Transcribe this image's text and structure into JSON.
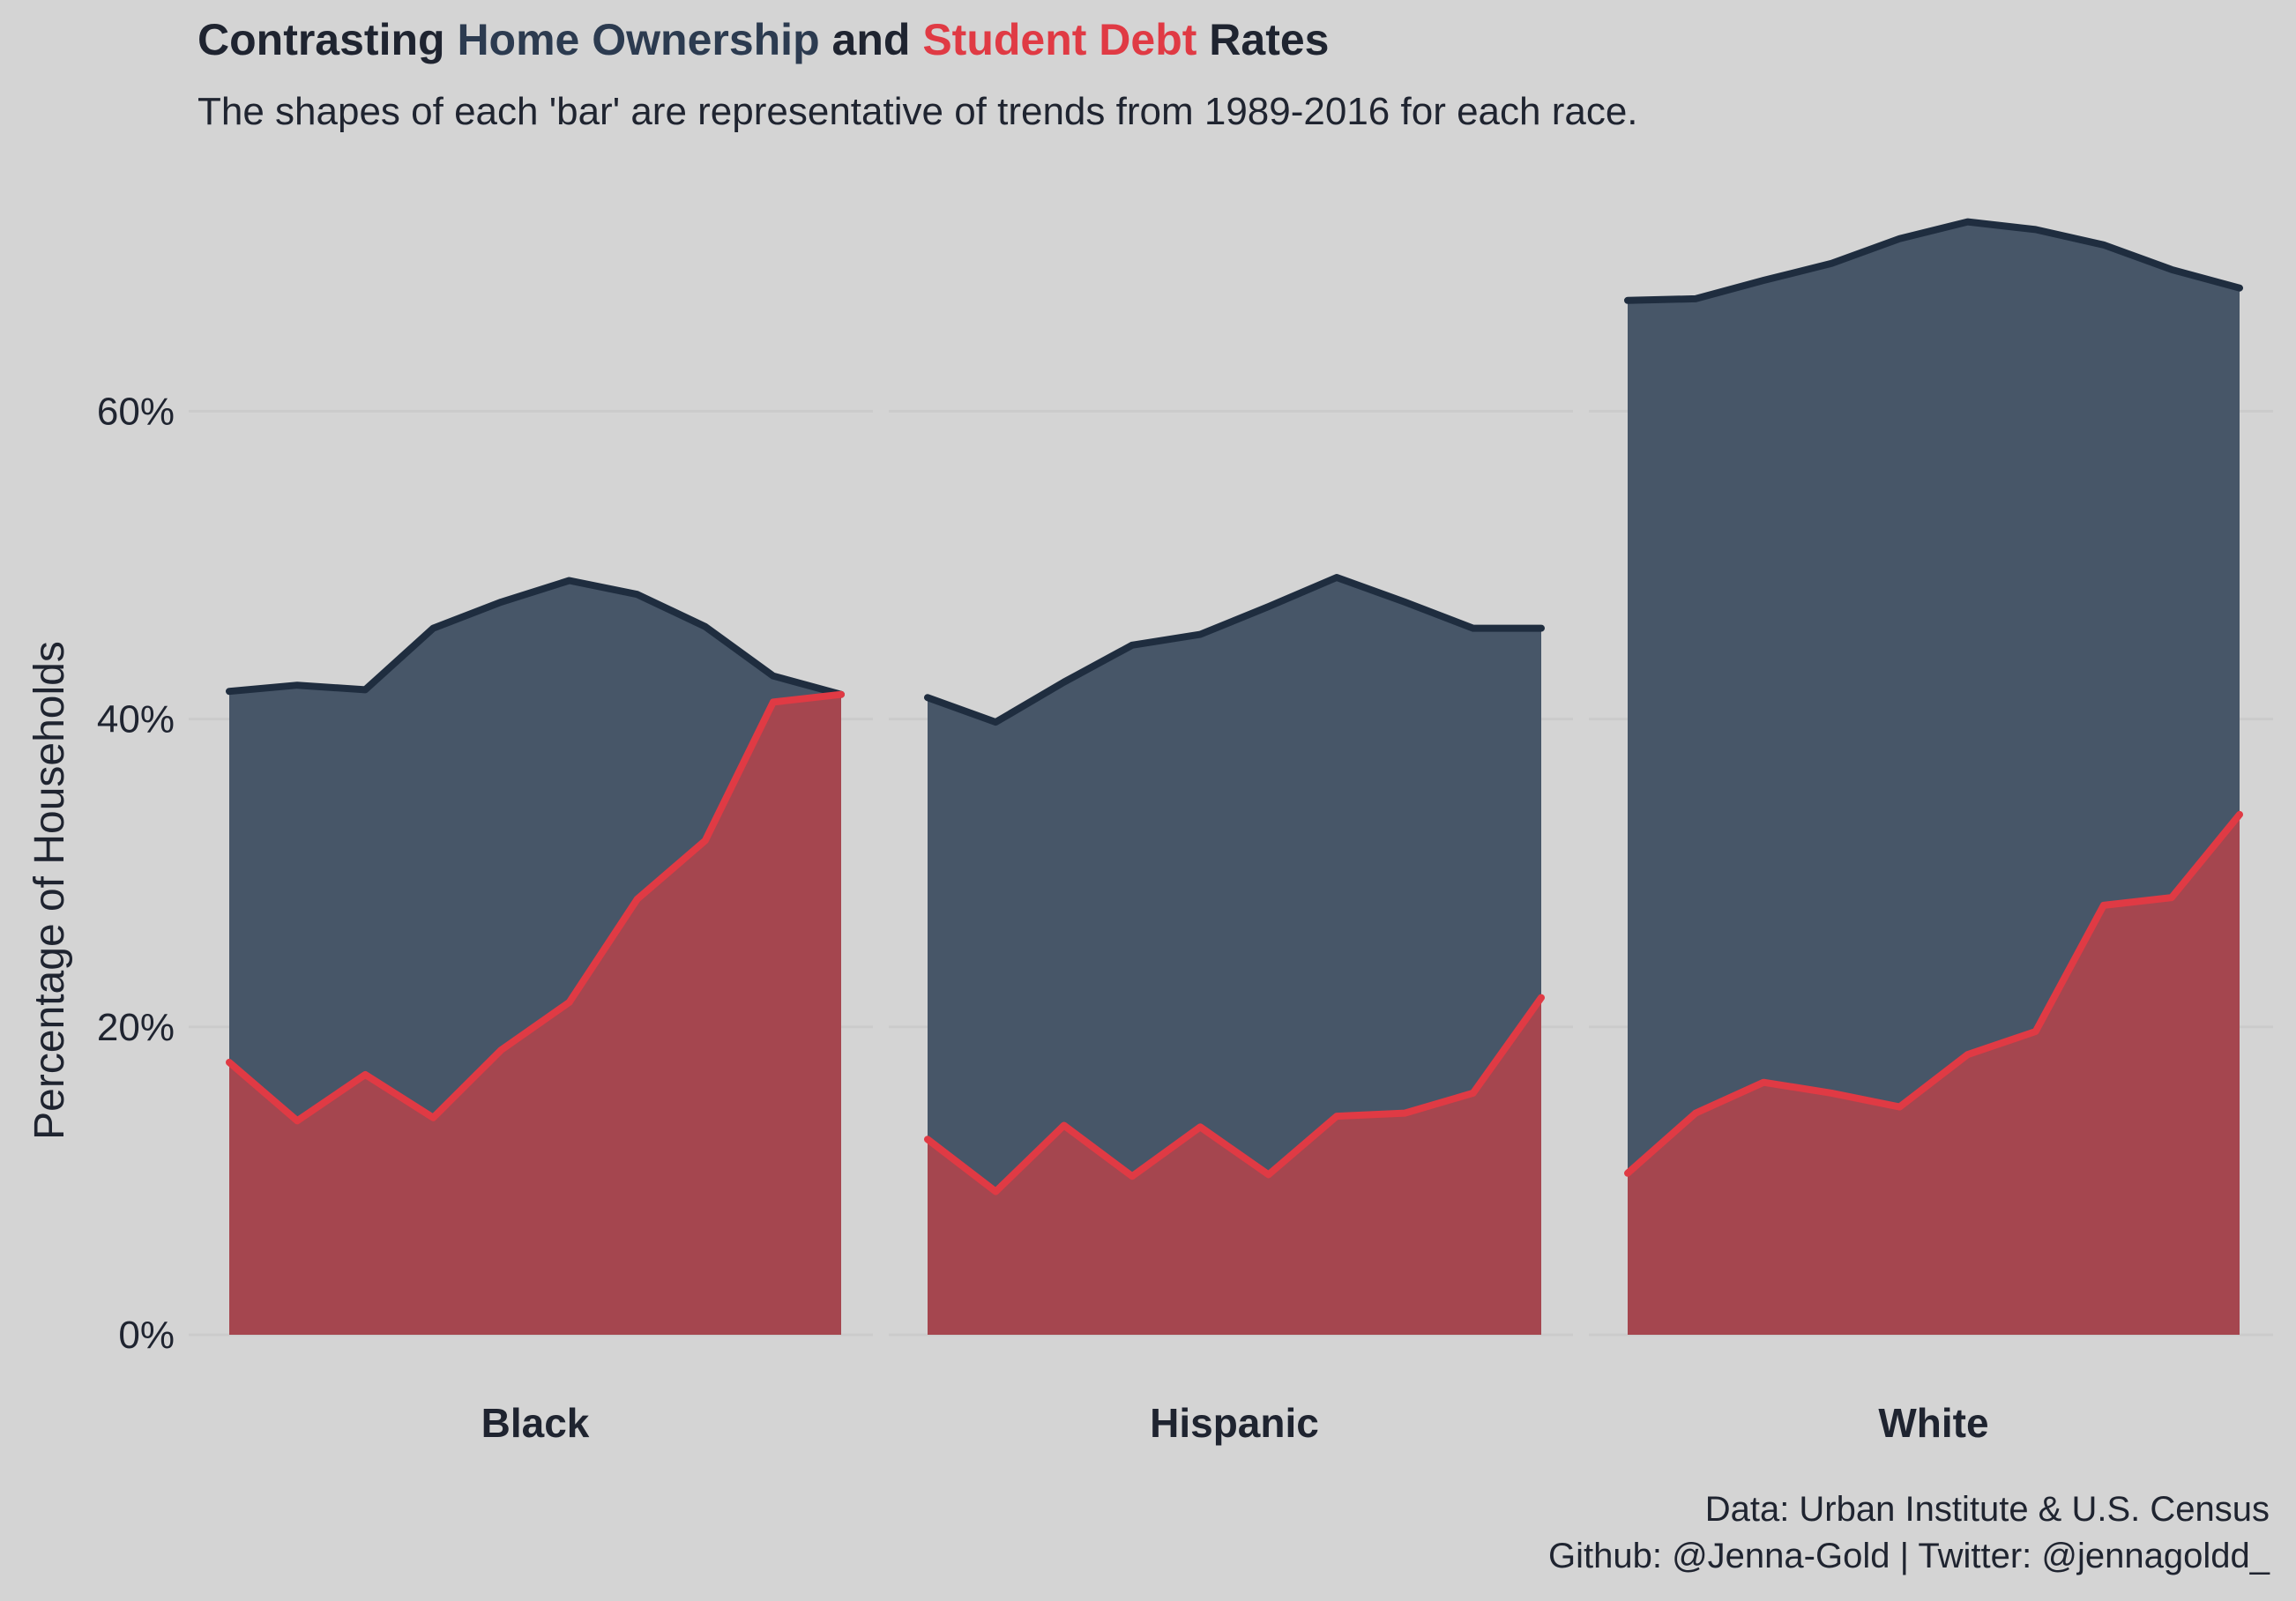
{
  "title": {
    "part1": "Contrasting ",
    "part2": "Home Ownership",
    "part3": " and ",
    "part4": "Student Debt",
    "part5": " Rates"
  },
  "subtitle": "The shapes of each 'bar' are representative of trends from 1989-2016 for each race.",
  "caption": {
    "line1": "Data: Urban Institute & U.S. Census",
    "line2": "Github: @Jenna-Gold | Twitter: @jennagoldd_"
  },
  "colors": {
    "background": "#d4d4d4",
    "home_fill": "#475668",
    "home_line": "#1f2d3f",
    "debt_fill": "#a5464f",
    "debt_line": "#e03a44",
    "text": "#1f2430"
  },
  "chart_data": {
    "type": "area",
    "ylabel": "Percentage of Households",
    "ylim": [
      0,
      70
    ],
    "yticks": [
      0,
      20,
      40,
      60
    ],
    "ytick_labels": [
      "0%",
      "20%",
      "40%",
      "60%"
    ],
    "grid": true,
    "categories": [
      "Black",
      "Hispanic",
      "White"
    ],
    "panels": [
      {
        "category": "Black",
        "home_ownership": [
          41.8,
          42.2,
          41.9,
          45.9,
          47.6,
          49.0,
          48.1,
          46.0,
          42.8,
          41.6
        ],
        "student_debt": [
          17.7,
          13.9,
          16.9,
          14.1,
          18.5,
          21.6,
          28.3,
          32.1,
          41.1,
          41.6
        ]
      },
      {
        "category": "Hispanic",
        "home_ownership": [
          41.4,
          39.8,
          42.4,
          44.8,
          45.5,
          47.3,
          49.2,
          47.6,
          45.9,
          45.9
        ],
        "student_debt": [
          12.7,
          9.3,
          13.6,
          10.3,
          13.5,
          10.4,
          14.2,
          14.4,
          15.7,
          21.9
        ]
      },
      {
        "category": "White",
        "home_ownership": [
          67.2,
          67.3,
          68.5,
          69.6,
          71.2,
          72.3,
          71.8,
          70.8,
          69.2,
          68.0
        ],
        "student_debt": [
          10.5,
          14.4,
          16.4,
          15.7,
          14.8,
          18.2,
          19.7,
          27.9,
          28.4,
          33.8
        ]
      }
    ]
  }
}
